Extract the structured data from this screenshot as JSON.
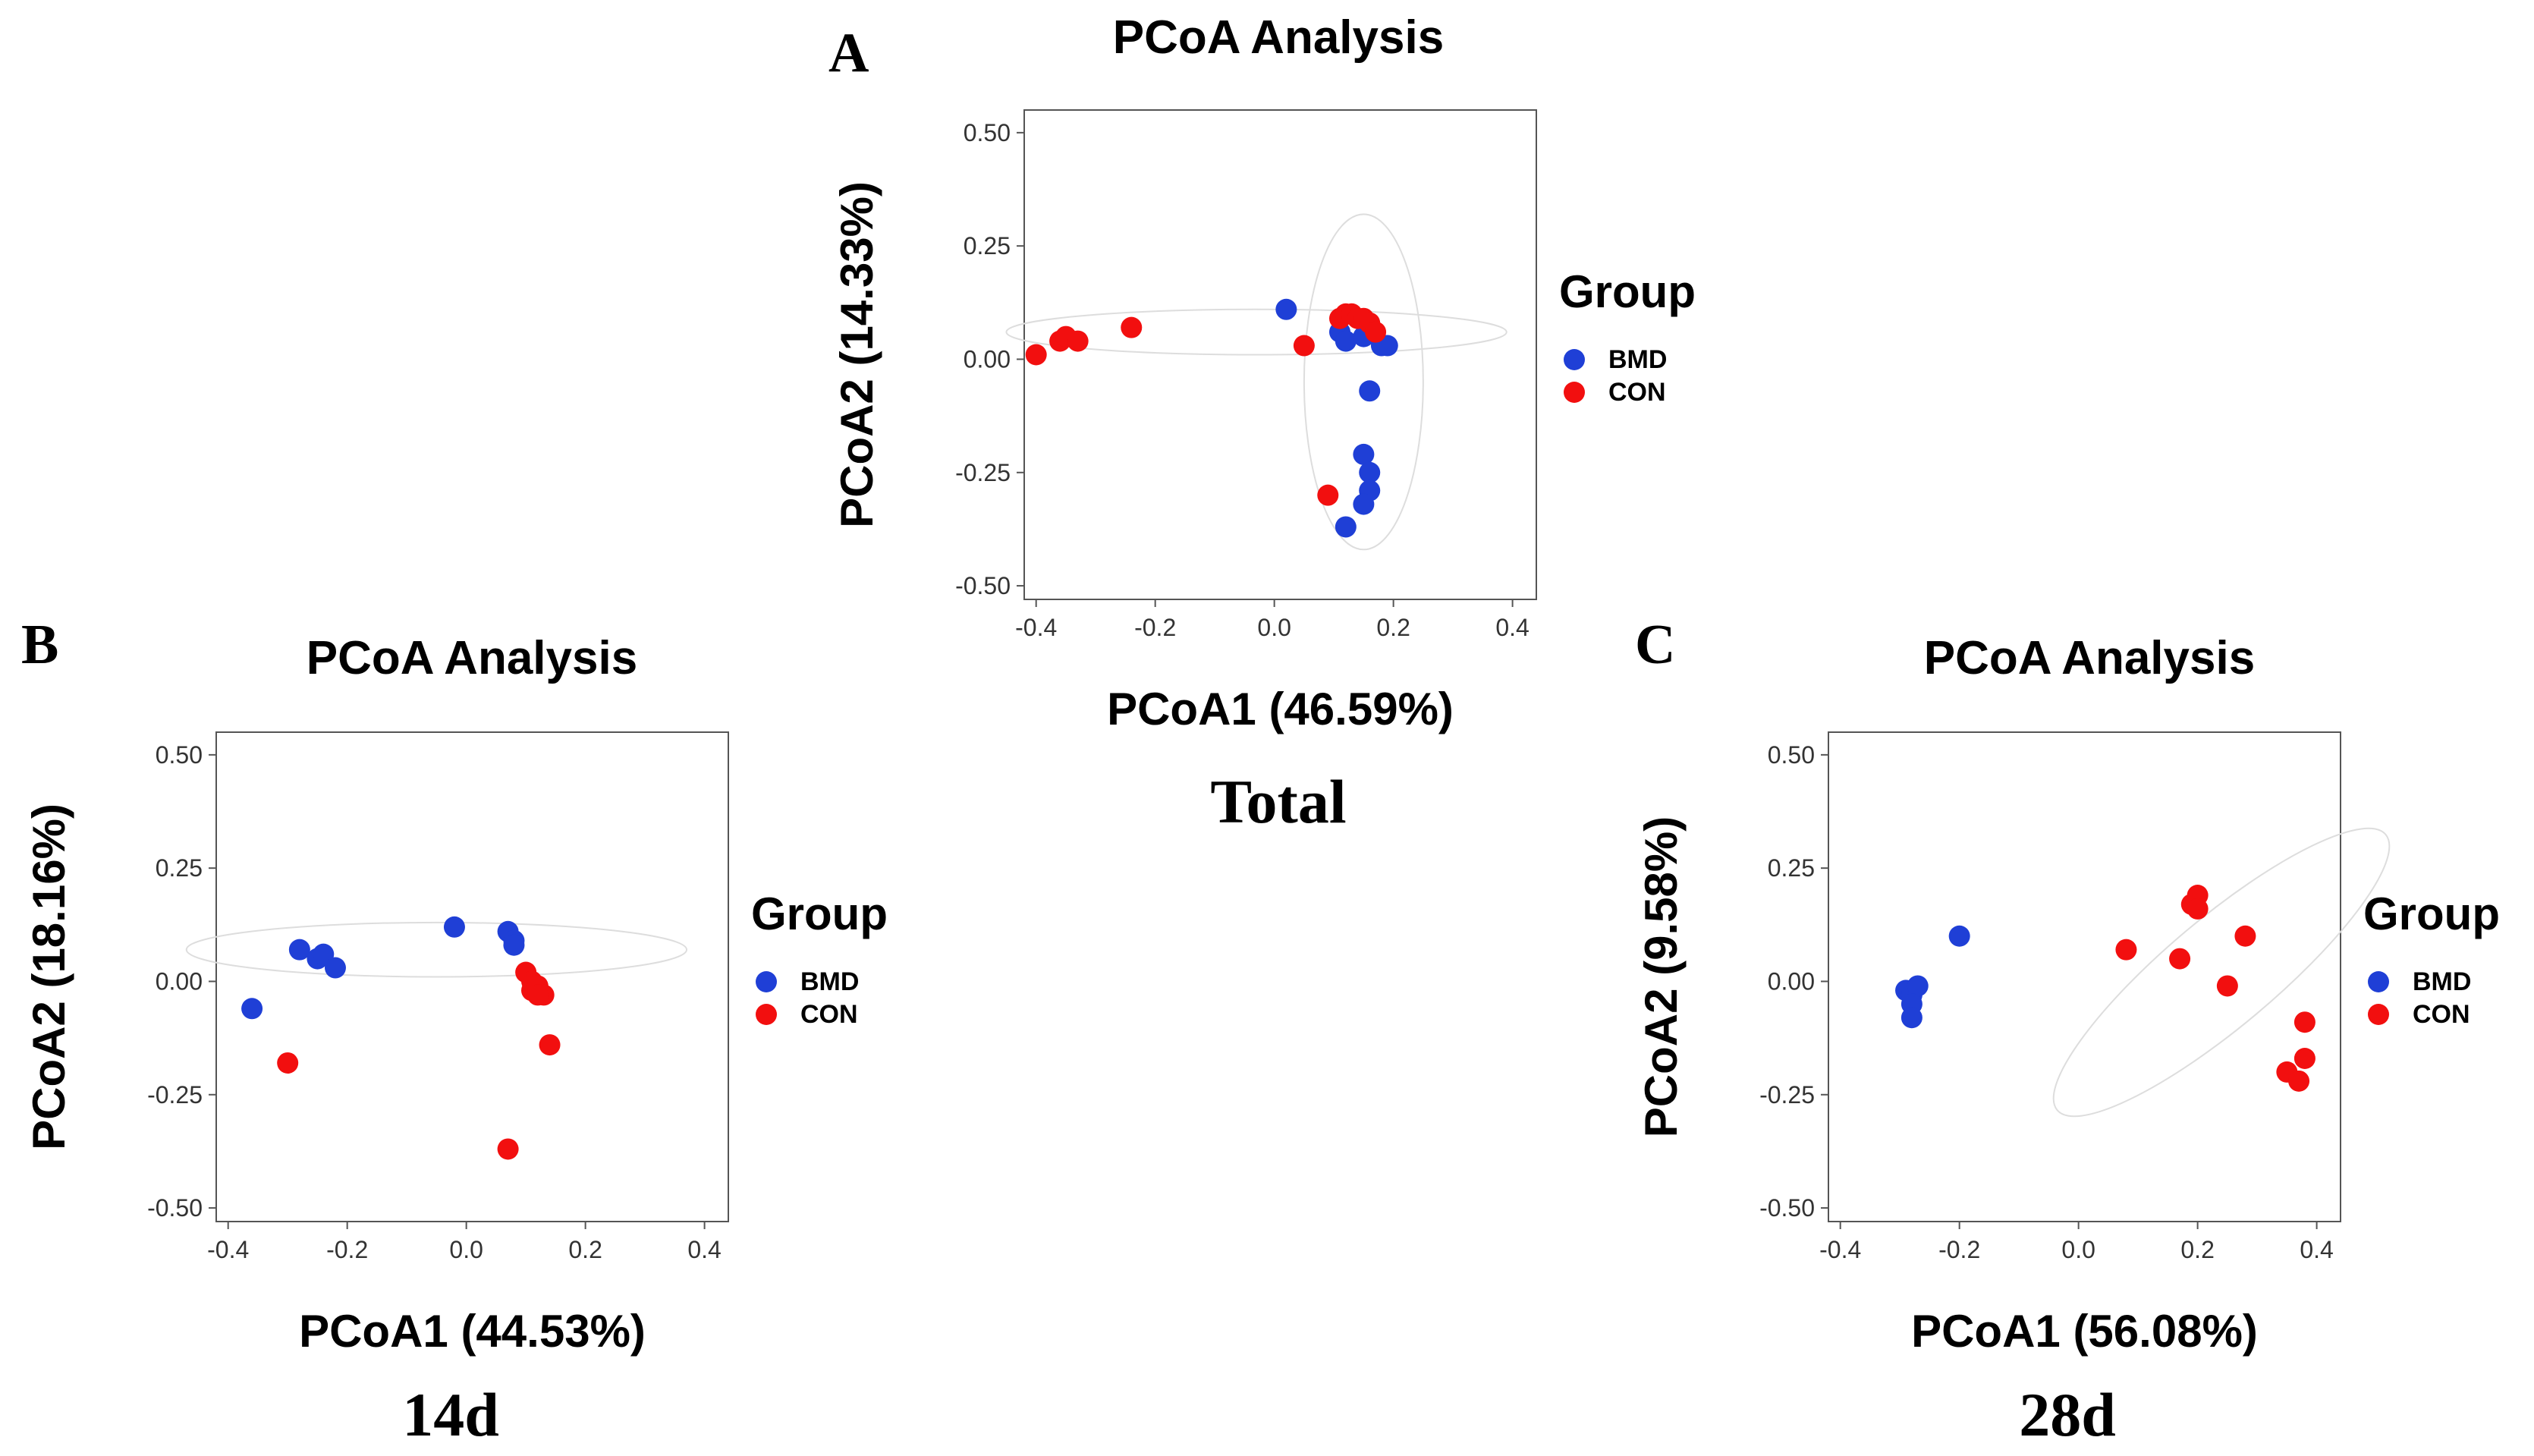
{
  "colors": {
    "BMD": "#1f3fd6",
    "CON": "#f20f0f"
  },
  "chart_data": [
    {
      "id": "A",
      "type": "scatter",
      "panel_label": "A",
      "title": "PCoA Analysis",
      "subtitle": "Total",
      "xlabel": "PCoA1 (46.59%)",
      "ylabel": "PCoA2 (14.33%)",
      "xlim": [
        -0.42,
        0.44
      ],
      "ylim": [
        -0.53,
        0.55
      ],
      "xticks": [
        -0.4,
        -0.2,
        0.0,
        0.2,
        0.4
      ],
      "xtick_labels": [
        "-0.4",
        "-0.2",
        "0.0",
        "0.2",
        "0.4"
      ],
      "yticks": [
        0.5,
        0.25,
        0.0,
        -0.25,
        -0.5
      ],
      "ytick_labels": [
        "0.50",
        "0.25",
        "0.00",
        "-0.25",
        "-0.50"
      ],
      "legend": {
        "title": "Group",
        "position": "right",
        "entries": [
          "BMD",
          "CON"
        ]
      },
      "series": [
        {
          "name": "BMD",
          "points": [
            [
              0.02,
              0.11
            ],
            [
              0.11,
              0.06
            ],
            [
              0.12,
              0.04
            ],
            [
              0.15,
              0.05
            ],
            [
              0.18,
              0.03
            ],
            [
              0.19,
              0.03
            ],
            [
              0.16,
              -0.07
            ],
            [
              0.15,
              -0.21
            ],
            [
              0.16,
              -0.25
            ],
            [
              0.16,
              -0.29
            ],
            [
              0.15,
              -0.32
            ],
            [
              0.12,
              -0.37
            ]
          ]
        },
        {
          "name": "CON",
          "points": [
            [
              -0.4,
              0.01
            ],
            [
              -0.36,
              0.04
            ],
            [
              -0.35,
              0.05
            ],
            [
              -0.33,
              0.04
            ],
            [
              -0.24,
              0.07
            ],
            [
              0.05,
              0.03
            ],
            [
              0.11,
              0.09
            ],
            [
              0.12,
              0.1
            ],
            [
              0.13,
              0.1
            ],
            [
              0.14,
              0.09
            ],
            [
              0.15,
              0.09
            ],
            [
              0.16,
              0.08
            ],
            [
              0.17,
              0.06
            ],
            [
              0.09,
              -0.3
            ]
          ]
        }
      ],
      "ellipses": [
        {
          "group": "CON",
          "cx": -0.03,
          "cy": 0.06,
          "rx": 0.42,
          "ry": 0.05
        },
        {
          "group": "BMD",
          "cx": 0.15,
          "cy": -0.05,
          "rx": 0.1,
          "ry": 0.37
        }
      ]
    },
    {
      "id": "B",
      "type": "scatter",
      "panel_label": "B",
      "title": "PCoA Analysis",
      "subtitle": "14d",
      "xlabel": "PCoA1 (44.53%)",
      "ylabel": "PCoA2 (18.16%)",
      "xlim": [
        -0.42,
        0.44
      ],
      "ylim": [
        -0.53,
        0.55
      ],
      "xticks": [
        -0.4,
        -0.2,
        0.0,
        0.2,
        0.4
      ],
      "xtick_labels": [
        "-0.4",
        "-0.2",
        "0.0",
        "0.2",
        "0.4"
      ],
      "yticks": [
        0.5,
        0.25,
        0.0,
        -0.25,
        -0.5
      ],
      "ytick_labels": [
        "0.50",
        "0.25",
        "0.00",
        "-0.25",
        "-0.50"
      ],
      "legend": {
        "title": "Group",
        "position": "right",
        "entries": [
          "BMD",
          "CON"
        ]
      },
      "series": [
        {
          "name": "BMD",
          "points": [
            [
              -0.36,
              -0.06
            ],
            [
              -0.28,
              0.07
            ],
            [
              -0.25,
              0.05
            ],
            [
              -0.24,
              0.06
            ],
            [
              -0.22,
              0.03
            ],
            [
              -0.02,
              0.12
            ],
            [
              0.07,
              0.11
            ],
            [
              0.08,
              0.09
            ],
            [
              0.08,
              0.08
            ]
          ]
        },
        {
          "name": "CON",
          "points": [
            [
              -0.3,
              -0.18
            ],
            [
              0.1,
              0.02
            ],
            [
              0.11,
              0.0
            ],
            [
              0.11,
              -0.02
            ],
            [
              0.12,
              -0.01
            ],
            [
              0.13,
              -0.03
            ],
            [
              0.12,
              -0.03
            ],
            [
              0.14,
              -0.14
            ],
            [
              0.07,
              -0.37
            ]
          ]
        }
      ],
      "ellipses": [
        {
          "group": "BMD",
          "cx": -0.05,
          "cy": 0.07,
          "rx": 0.42,
          "ry": 0.06
        }
      ]
    },
    {
      "id": "C",
      "type": "scatter",
      "panel_label": "C",
      "title": "PCoA Analysis",
      "subtitle": "28d",
      "xlabel": "PCoA1 (56.08%)",
      "ylabel": "PCoA2 (9.58%)",
      "xlim": [
        -0.42,
        0.44
      ],
      "ylim": [
        -0.53,
        0.55
      ],
      "xticks": [
        -0.4,
        -0.2,
        0.0,
        0.2,
        0.4
      ],
      "xtick_labels": [
        "-0.4",
        "-0.2",
        "0.0",
        "0.2",
        "0.4"
      ],
      "yticks": [
        0.5,
        0.25,
        0.0,
        -0.25,
        -0.5
      ],
      "ytick_labels": [
        "0.50",
        "0.25",
        "0.00",
        "-0.25",
        "-0.50"
      ],
      "legend": {
        "title": "Group",
        "position": "right",
        "entries": [
          "BMD",
          "CON"
        ]
      },
      "series": [
        {
          "name": "BMD",
          "points": [
            [
              -0.29,
              -0.02
            ],
            [
              -0.28,
              -0.03
            ],
            [
              -0.27,
              -0.01
            ],
            [
              -0.28,
              -0.05
            ],
            [
              -0.28,
              -0.08
            ],
            [
              -0.2,
              0.1
            ]
          ]
        },
        {
          "name": "CON",
          "points": [
            [
              0.08,
              0.07
            ],
            [
              0.17,
              0.05
            ],
            [
              0.19,
              0.17
            ],
            [
              0.2,
              0.19
            ],
            [
              0.2,
              0.16
            ],
            [
              0.25,
              -0.01
            ],
            [
              0.28,
              0.1
            ],
            [
              0.38,
              -0.09
            ],
            [
              0.38,
              -0.17
            ],
            [
              0.35,
              -0.2
            ],
            [
              0.37,
              -0.22
            ]
          ]
        }
      ],
      "ellipses": [
        {
          "group": "CON",
          "cx": 0.24,
          "cy": 0.02,
          "rx": 0.36,
          "ry": 0.12,
          "angle": 40
        }
      ]
    }
  ]
}
